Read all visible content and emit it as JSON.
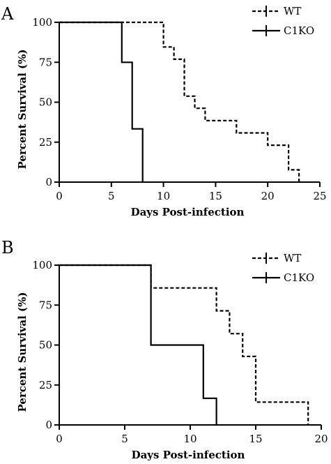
{
  "chart_data": [
    {
      "type": "line",
      "panel": "A",
      "xlabel": "Days Post-infection",
      "ylabel": "Percent Survival (%)",
      "xlim": [
        0,
        25
      ],
      "ylim": [
        0,
        100
      ],
      "xticks": [
        "0",
        "5",
        "10",
        "15",
        "20",
        "25"
      ],
      "yticks": [
        "0",
        "25",
        "50",
        "75",
        "100"
      ],
      "legend_position": "top-right",
      "series": [
        {
          "name": "WT",
          "style": "dashed",
          "points": [
            [
              0,
              100
            ],
            [
              10,
              100
            ],
            [
              10,
              84.6
            ],
            [
              11,
              84.6
            ],
            [
              11,
              76.9
            ],
            [
              12,
              76.9
            ],
            [
              12,
              53.8
            ],
            [
              13,
              53.8
            ],
            [
              13,
              46.2
            ],
            [
              14,
              46.2
            ],
            [
              14,
              38.5
            ],
            [
              17,
              38.5
            ],
            [
              17,
              30.8
            ],
            [
              20,
              30.8
            ],
            [
              20,
              23.1
            ],
            [
              22,
              23.1
            ],
            [
              22,
              7.7
            ],
            [
              23,
              7.7
            ],
            [
              23,
              0
            ]
          ]
        },
        {
          "name": "C1KO",
          "style": "solid",
          "points": [
            [
              0,
              100
            ],
            [
              6,
              100
            ],
            [
              6,
              75
            ],
            [
              7,
              75
            ],
            [
              7,
              33.3
            ],
            [
              8,
              33.3
            ],
            [
              8,
              0
            ]
          ]
        }
      ]
    },
    {
      "type": "line",
      "panel": "B",
      "xlabel": "Days Post-infection",
      "ylabel": "Percent Survival (%)",
      "xlim": [
        0,
        20
      ],
      "ylim": [
        0,
        100
      ],
      "xticks": [
        "0",
        "5",
        "10",
        "15",
        "20"
      ],
      "yticks": [
        "0",
        "25",
        "50",
        "75",
        "100"
      ],
      "legend_position": "top-right",
      "series": [
        {
          "name": "WT",
          "style": "dashed",
          "points": [
            [
              0,
              100
            ],
            [
              7,
              100
            ],
            [
              7,
              85.7
            ],
            [
              12,
              85.7
            ],
            [
              12,
              71.4
            ],
            [
              13,
              71.4
            ],
            [
              13,
              57.1
            ],
            [
              14,
              57.1
            ],
            [
              14,
              42.9
            ],
            [
              15,
              42.9
            ],
            [
              15,
              14.3
            ],
            [
              19,
              14.3
            ],
            [
              19,
              0
            ]
          ]
        },
        {
          "name": "C1KO",
          "style": "solid",
          "points": [
            [
              0,
              100
            ],
            [
              7,
              100
            ],
            [
              7,
              50
            ],
            [
              11,
              50
            ],
            [
              11,
              16.7
            ],
            [
              12,
              16.7
            ],
            [
              12,
              0
            ]
          ]
        }
      ]
    }
  ]
}
